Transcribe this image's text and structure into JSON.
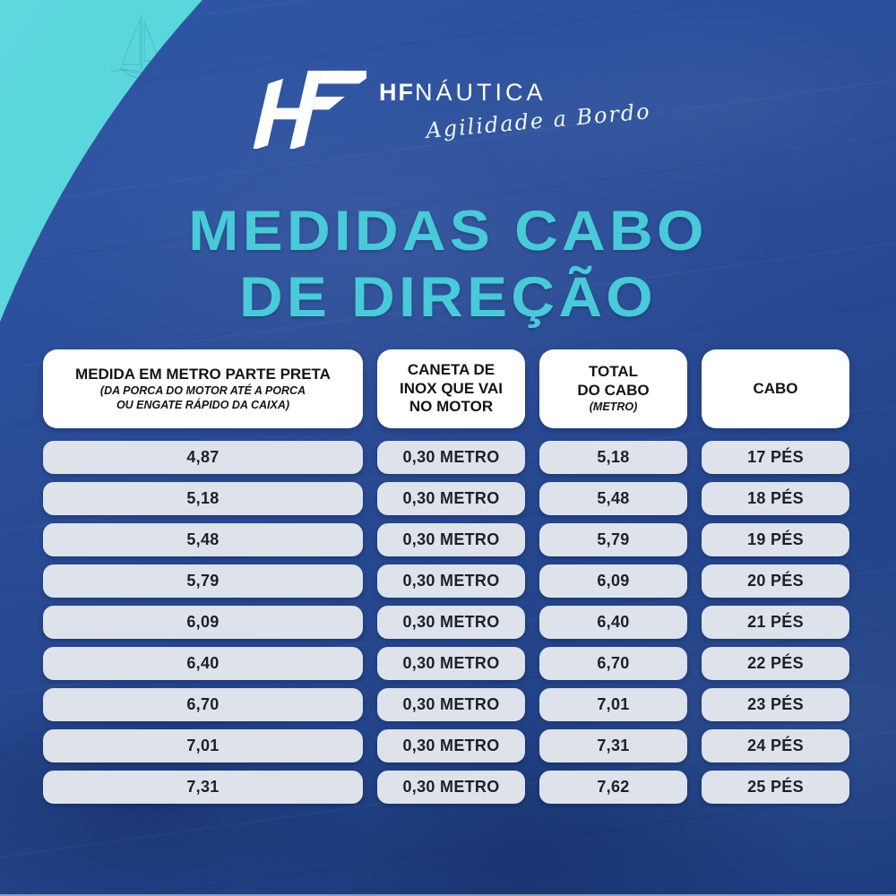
{
  "logo": {
    "monogram": "HF",
    "brand_bold": "HF",
    "brand_light": "NÁUTICA",
    "tagline": "Agilidade a Bordo"
  },
  "title": {
    "line1": "MEDIDAS CABO",
    "line2": "DE DIREÇÃO"
  },
  "table": {
    "headers": [
      {
        "title": "MEDIDA EM METRO PARTE PRETA",
        "subtitle": "(DA PORCA DO MOTOR ATÉ A PORCA\nOU ENGATE RÁPIDO DA CAIXA)"
      },
      {
        "title": "CANETA DE\nINOX QUE VAI\nNO MOTOR",
        "subtitle": ""
      },
      {
        "title": "TOTAL\nDO CABO",
        "subtitle": "(METRO)"
      },
      {
        "title": "CABO",
        "subtitle": ""
      }
    ],
    "rows": [
      [
        "4,87",
        "0,30 METRO",
        "5,18",
        "17 PÉS"
      ],
      [
        "5,18",
        "0,30 METRO",
        "5,48",
        "18 PÉS"
      ],
      [
        "5,48",
        "0,30 METRO",
        "5,79",
        "19 PÉS"
      ],
      [
        "5,79",
        "0,30 METRO",
        "6,09",
        "20 PÉS"
      ],
      [
        "6,09",
        "0,30 METRO",
        "6,40",
        "21 PÉS"
      ],
      [
        "6,40",
        "0,30 METRO",
        "6,70",
        "22 PÉS"
      ],
      [
        "6,70",
        "0,30 METRO",
        "7,01",
        "23 PÉS"
      ],
      [
        "7,01",
        "0,30 METRO",
        "7,31",
        "24 PÉS"
      ],
      [
        "7,31",
        "0,30 METRO",
        "7,62",
        "25 PÉS"
      ]
    ]
  },
  "chart_data": {
    "type": "table",
    "columns": [
      "MEDIDA EM METRO PARTE PRETA (DA PORCA DO MOTOR ATÉ A PORCA OU ENGATE RÁPIDO DA CAIXA)",
      "CANETA DE INOX QUE VAI NO MOTOR",
      "TOTAL DO CABO (METRO)",
      "CABO"
    ],
    "rows": [
      [
        "4,87",
        "0,30 METRO",
        "5,18",
        "17 PÉS"
      ],
      [
        "5,18",
        "0,30 METRO",
        "5,48",
        "18 PÉS"
      ],
      [
        "5,48",
        "0,30 METRO",
        "5,79",
        "19 PÉS"
      ],
      [
        "5,79",
        "0,30 METRO",
        "6,09",
        "20 PÉS"
      ],
      [
        "6,09",
        "0,30 METRO",
        "6,40",
        "21 PÉS"
      ],
      [
        "6,40",
        "0,30 METRO",
        "6,70",
        "22 PÉS"
      ],
      [
        "6,70",
        "0,30 METRO",
        "7,01",
        "23 PÉS"
      ],
      [
        "7,01",
        "0,30 METRO",
        "7,31",
        "24 PÉS"
      ],
      [
        "7,31",
        "0,30 METRO",
        "7,62",
        "25 PÉS"
      ]
    ]
  },
  "icons": {
    "hf_monogram": "stylized slanted HF letters, white",
    "sailboat_sketch": "faint line-art sailboat on teal corner"
  },
  "colors": {
    "teal": "#45cdd4",
    "teal_light": "#5fd9de",
    "royal_blue": "#2a4c96",
    "navy": "#1c3d7e",
    "title_cyan": "#49cad8",
    "header_bg": "#ffffff",
    "cell_bg": "#dde2eb",
    "cell_text": "#1d2026"
  }
}
